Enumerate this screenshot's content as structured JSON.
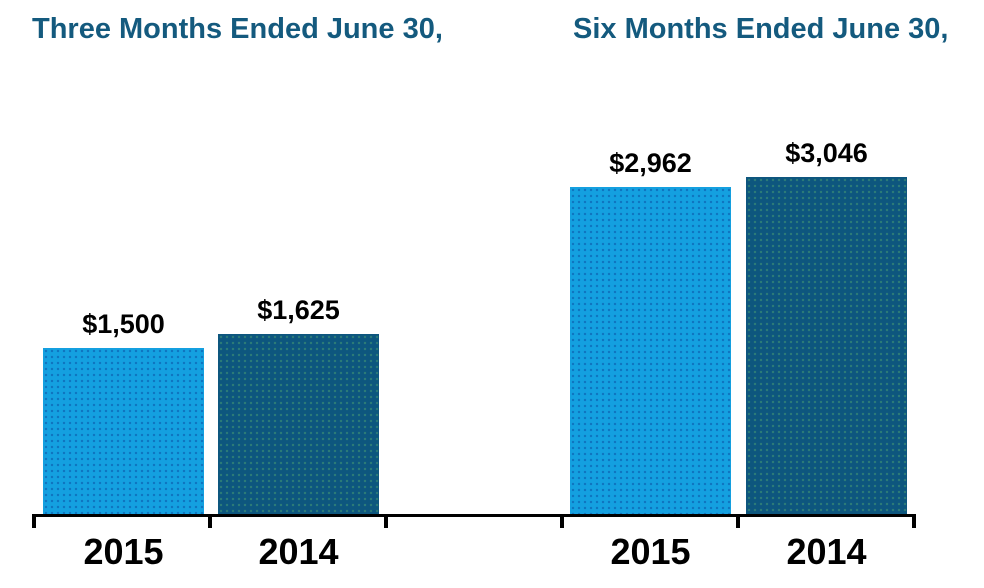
{
  "chart_data": {
    "type": "bar",
    "groups": [
      {
        "title": "Three Months Ended June 30,",
        "categories": [
          "2015",
          "2014"
        ],
        "values": [
          1500,
          1625
        ],
        "value_labels": [
          "$1,500",
          "$1,625"
        ]
      },
      {
        "title": "Six Months Ended June 30,",
        "categories": [
          "2015",
          "2014"
        ],
        "values": [
          2962,
          3046
        ],
        "value_labels": [
          "$2,962",
          "$3,046"
        ]
      }
    ],
    "series_colors": {
      "2015": "#14A0E0",
      "2014": "#0D567E"
    },
    "title_color": "#145A7E",
    "axis_color": "#000000",
    "value_label_color": "#000000",
    "ylim": [
      0,
      3300
    ],
    "grid": false,
    "legend": "none"
  }
}
